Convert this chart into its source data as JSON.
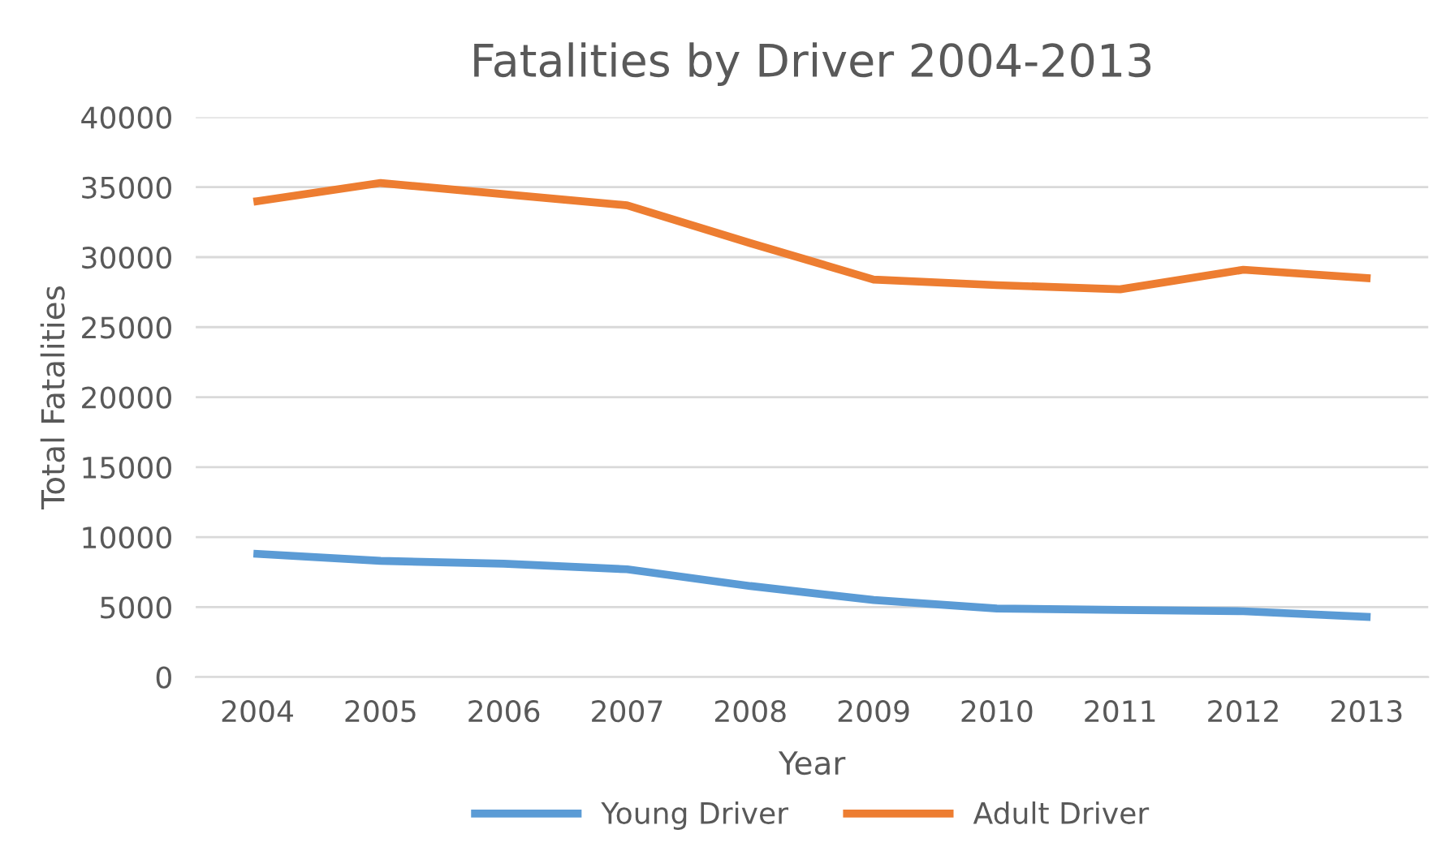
{
  "chart_data": {
    "type": "line",
    "title": "Fatalities by Driver 2004-2013",
    "xlabel": "Year",
    "ylabel": "Total Fatalities",
    "categories": [
      "2004",
      "2005",
      "2006",
      "2007",
      "2008",
      "2009",
      "2010",
      "2011",
      "2012",
      "2013"
    ],
    "series": [
      {
        "name": "Young Driver",
        "color": "#5b9bd5",
        "values": [
          8800,
          8300,
          8100,
          7700,
          6500,
          5500,
          4900,
          4800,
          4700,
          4300
        ]
      },
      {
        "name": "Adult Driver",
        "color": "#ed7d31",
        "values": [
          34000,
          35300,
          34500,
          33700,
          31000,
          28400,
          28000,
          27700,
          29100,
          28500
        ]
      }
    ],
    "ylim": [
      0,
      40000
    ],
    "yticks": [
      0,
      5000,
      10000,
      15000,
      20000,
      25000,
      30000,
      35000,
      40000
    ],
    "grid": "y",
    "legend": "bottom",
    "marker": "none",
    "line_style": "solid"
  }
}
